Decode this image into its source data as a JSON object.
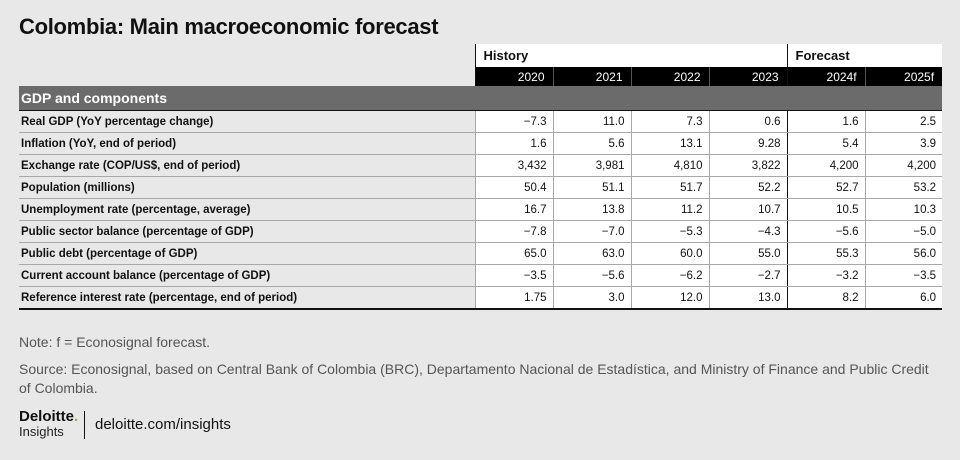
{
  "title": "Colombia: Main macroeconomic forecast",
  "table": {
    "group_history": "History",
    "group_forecast": "Forecast",
    "years": [
      "2020",
      "2021",
      "2022",
      "2023",
      "2024f",
      "2025f"
    ],
    "section": "GDP and components",
    "rows": [
      {
        "label": "Real GDP (YoY percentage change)",
        "values": [
          "−7.3",
          "11.0",
          "7.3",
          "0.6",
          "1.6",
          "2.5"
        ]
      },
      {
        "label": "Inflation (YoY, end of period)",
        "values": [
          "1.6",
          "5.6",
          "13.1",
          "9.28",
          "5.4",
          "3.9"
        ]
      },
      {
        "label": "Exchange rate (COP/US$, end of period)",
        "values": [
          "3,432",
          "3,981",
          "4,810",
          "3,822",
          "4,200",
          "4,200"
        ]
      },
      {
        "label": "Population (millions)",
        "values": [
          "50.4",
          "51.1",
          "51.7",
          "52.2",
          "52.7",
          "53.2"
        ]
      },
      {
        "label": "Unemployment rate (percentage, average)",
        "values": [
          "16.7",
          "13.8",
          "11.2",
          "10.7",
          "10.5",
          "10.3"
        ]
      },
      {
        "label": "Public sector balance (percentage of GDP)",
        "values": [
          "−7.8",
          "−7.0",
          "−5.3",
          "−4.3",
          "−5.6",
          "−5.0"
        ]
      },
      {
        "label": "Public debt (percentage of GDP)",
        "values": [
          "65.0",
          "63.0",
          "60.0",
          "55.0",
          "55.3",
          "56.0"
        ]
      },
      {
        "label": "Current account balance (percentage of GDP)",
        "values": [
          "−3.5",
          "−5.6",
          "−6.2",
          "−2.7",
          "−3.2",
          "−3.5"
        ]
      },
      {
        "label": "Reference interest rate (percentage, end of period)",
        "values": [
          "1.75",
          "3.0",
          "12.0",
          "13.0",
          "8.2",
          "6.0"
        ]
      }
    ]
  },
  "note": "Note: f = Econosignal forecast.",
  "source": "Source: Econosignal, based on Central Bank of Colombia (BRC), Departamento Nacional de Estadística, and Ministry of Finance and Public Credit of Colombia.",
  "brand": {
    "name": "Deloitte",
    "dot": ".",
    "sub": "Insights"
  },
  "site": "deloitte.com/insights",
  "colors": {
    "brand_green": "#86bc25",
    "section_bg": "#6b6b6b",
    "year_bar": "#000000",
    "page_bg": "#e8e8e8"
  }
}
